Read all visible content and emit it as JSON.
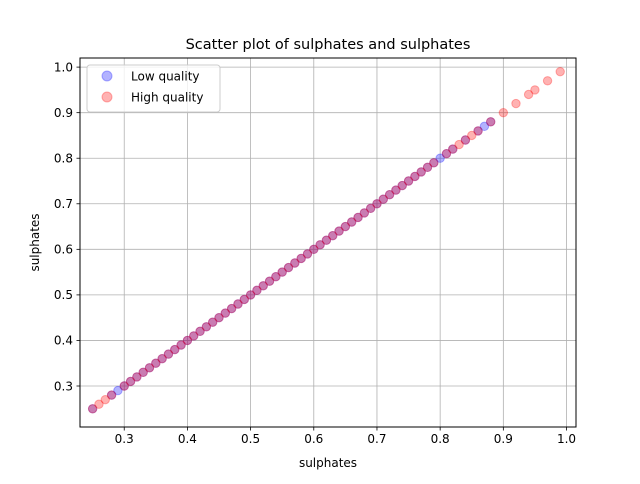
{
  "chart_data": {
    "type": "scatter",
    "title": "Scatter plot of sulphates and sulphates",
    "xlabel": "sulphates",
    "ylabel": "sulphates",
    "xlim": [
      0.23,
      1.015
    ],
    "ylim": [
      0.21,
      1.02
    ],
    "xticks": [
      0.3,
      0.4,
      0.5,
      0.6,
      0.7,
      0.8,
      0.9,
      1.0
    ],
    "xtick_labels": [
      "0.3",
      "0.4",
      "0.5",
      "0.6",
      "0.7",
      "0.8",
      "0.9",
      "1.0"
    ],
    "yticks": [
      0.3,
      0.4,
      0.5,
      0.6,
      0.7,
      0.8,
      0.9,
      1.0
    ],
    "ytick_labels": [
      "0.3",
      "0.4",
      "0.5",
      "0.6",
      "0.7",
      "0.8",
      "0.9",
      "1.0"
    ],
    "grid": true,
    "legend_position": "upper-left",
    "series": [
      {
        "name": "Low quality",
        "color": "#0000ff",
        "x": [
          0.25,
          0.28,
          0.29,
          0.3,
          0.31,
          0.32,
          0.33,
          0.34,
          0.35,
          0.36,
          0.37,
          0.38,
          0.39,
          0.4,
          0.41,
          0.42,
          0.43,
          0.44,
          0.45,
          0.46,
          0.47,
          0.48,
          0.49,
          0.5,
          0.51,
          0.52,
          0.53,
          0.54,
          0.55,
          0.56,
          0.57,
          0.58,
          0.59,
          0.6,
          0.61,
          0.62,
          0.63,
          0.64,
          0.65,
          0.66,
          0.67,
          0.68,
          0.69,
          0.7,
          0.71,
          0.72,
          0.73,
          0.74,
          0.75,
          0.76,
          0.77,
          0.78,
          0.79,
          0.8,
          0.81,
          0.82,
          0.84,
          0.86,
          0.87,
          0.88
        ],
        "y": [
          0.25,
          0.28,
          0.29,
          0.3,
          0.31,
          0.32,
          0.33,
          0.34,
          0.35,
          0.36,
          0.37,
          0.38,
          0.39,
          0.4,
          0.41,
          0.42,
          0.43,
          0.44,
          0.45,
          0.46,
          0.47,
          0.48,
          0.49,
          0.5,
          0.51,
          0.52,
          0.53,
          0.54,
          0.55,
          0.56,
          0.57,
          0.58,
          0.59,
          0.6,
          0.61,
          0.62,
          0.63,
          0.64,
          0.65,
          0.66,
          0.67,
          0.68,
          0.69,
          0.7,
          0.71,
          0.72,
          0.73,
          0.74,
          0.75,
          0.76,
          0.77,
          0.78,
          0.79,
          0.8,
          0.81,
          0.82,
          0.84,
          0.86,
          0.87,
          0.88
        ]
      },
      {
        "name": "High quality",
        "color": "#ff0000",
        "x": [
          0.25,
          0.26,
          0.27,
          0.28,
          0.3,
          0.31,
          0.32,
          0.33,
          0.34,
          0.35,
          0.36,
          0.37,
          0.38,
          0.39,
          0.4,
          0.41,
          0.42,
          0.43,
          0.44,
          0.45,
          0.46,
          0.47,
          0.48,
          0.49,
          0.5,
          0.51,
          0.52,
          0.53,
          0.54,
          0.55,
          0.56,
          0.57,
          0.58,
          0.59,
          0.6,
          0.61,
          0.62,
          0.63,
          0.64,
          0.65,
          0.66,
          0.67,
          0.68,
          0.69,
          0.7,
          0.71,
          0.72,
          0.73,
          0.74,
          0.75,
          0.76,
          0.77,
          0.78,
          0.79,
          0.81,
          0.82,
          0.83,
          0.84,
          0.85,
          0.86,
          0.88,
          0.9,
          0.92,
          0.94,
          0.95,
          0.97,
          0.99
        ],
        "y": [
          0.25,
          0.26,
          0.27,
          0.28,
          0.3,
          0.31,
          0.32,
          0.33,
          0.34,
          0.35,
          0.36,
          0.37,
          0.38,
          0.39,
          0.4,
          0.41,
          0.42,
          0.43,
          0.44,
          0.45,
          0.46,
          0.47,
          0.48,
          0.49,
          0.5,
          0.51,
          0.52,
          0.53,
          0.54,
          0.55,
          0.56,
          0.57,
          0.58,
          0.59,
          0.6,
          0.61,
          0.62,
          0.63,
          0.64,
          0.65,
          0.66,
          0.67,
          0.68,
          0.69,
          0.7,
          0.71,
          0.72,
          0.73,
          0.74,
          0.75,
          0.76,
          0.77,
          0.78,
          0.79,
          0.81,
          0.82,
          0.83,
          0.84,
          0.85,
          0.86,
          0.88,
          0.9,
          0.92,
          0.94,
          0.95,
          0.97,
          0.99
        ]
      }
    ]
  }
}
